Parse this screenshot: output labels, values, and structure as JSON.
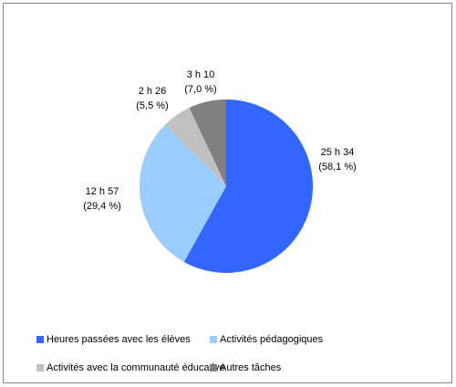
{
  "chart_data": {
    "type": "pie",
    "categories": [
      "Heures passées avec les élèves",
      "Activités pédagogiques",
      "Activités avec la communauté éducative",
      "Autres tâches"
    ],
    "values": [
      58.1,
      29.4,
      5.5,
      7.0
    ],
    "value_labels": [
      "(58,1 %)",
      "(29,4 %)",
      "(5,5 %)",
      "(7,0 %)"
    ],
    "durations": [
      "25 h 34",
      "12 h 57",
      "2 h 26",
      "3 h 10"
    ],
    "colors": [
      "#3366ff",
      "#99ccff",
      "#c0c0c0",
      "#808080"
    ]
  }
}
